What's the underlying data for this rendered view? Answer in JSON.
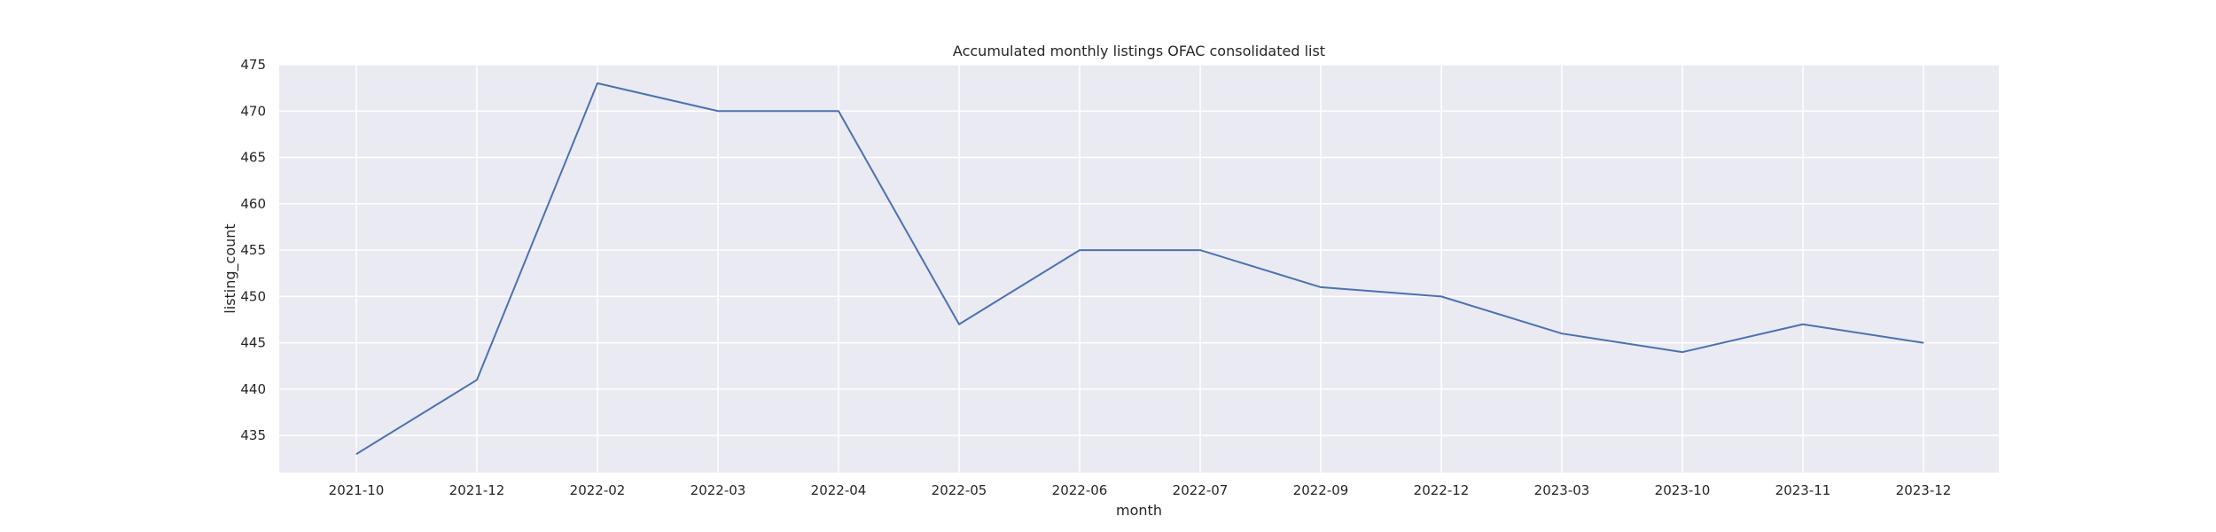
{
  "chart_data": {
    "type": "line",
    "title": "Accumulated monthly listings OFAC consolidated list",
    "xlabel": "month",
    "ylabel": "listing_count",
    "categories": [
      "2021-10",
      "2021-12",
      "2022-02",
      "2022-03",
      "2022-04",
      "2022-05",
      "2022-06",
      "2022-07",
      "2022-09",
      "2022-12",
      "2023-03",
      "2023-10",
      "2023-11",
      "2023-12"
    ],
    "series": [
      {
        "values": [
          433,
          441,
          473,
          470,
          470,
          447,
          455,
          455,
          451,
          450,
          446,
          444,
          447,
          445
        ]
      }
    ],
    "ylim": [
      431,
      475
    ],
    "yticks": [
      435,
      440,
      445,
      450,
      455,
      460,
      465,
      470,
      475
    ],
    "grid": true,
    "legend": "none",
    "colors": {
      "background": "#eaeaf2",
      "grid": "#ffffff",
      "line": "#4c72b0"
    }
  }
}
